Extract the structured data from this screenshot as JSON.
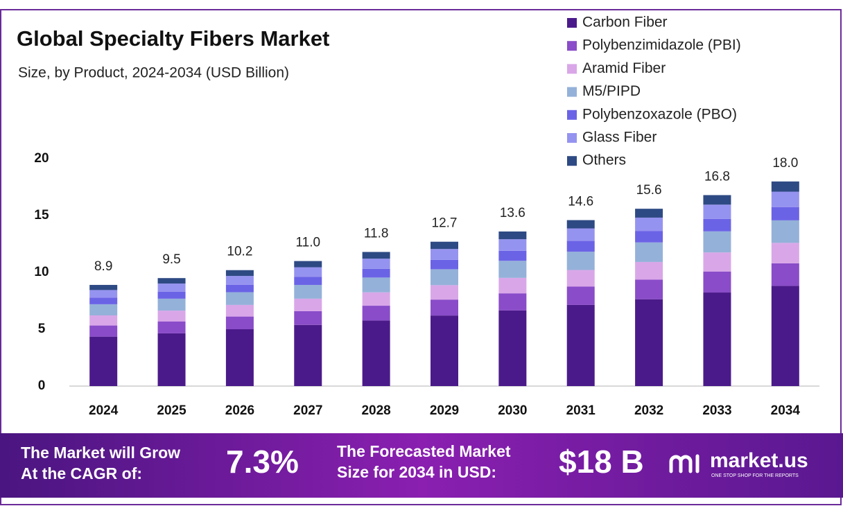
{
  "chart_data": {
    "type": "stacked-bar",
    "title": "Global Specialty Fibers Market",
    "subtitle": "Size, by Product, 2024-2034 (USD Billion)",
    "categories": [
      "2024",
      "2025",
      "2026",
      "2027",
      "2028",
      "2029",
      "2030",
      "2031",
      "2032",
      "2033",
      "2034"
    ],
    "series": [
      {
        "name": "Carbon Fiber",
        "color": "#4b1a8a",
        "values": [
          4.35,
          4.64,
          5.0,
          5.38,
          5.77,
          6.21,
          6.66,
          7.14,
          7.64,
          8.23,
          8.82
        ]
      },
      {
        "name": "Polybenzimidazole (PBI)",
        "color": "#8a4cc9",
        "values": [
          0.98,
          1.05,
          1.12,
          1.21,
          1.3,
          1.4,
          1.5,
          1.61,
          1.72,
          1.85,
          1.98
        ]
      },
      {
        "name": "Aramid Fiber",
        "color": "#d9a7e8",
        "values": [
          0.89,
          0.95,
          1.02,
          1.1,
          1.18,
          1.27,
          1.36,
          1.46,
          1.56,
          1.68,
          1.8
        ]
      },
      {
        "name": "M5/PIPD",
        "color": "#94b1d9",
        "values": [
          0.98,
          1.05,
          1.12,
          1.21,
          1.3,
          1.4,
          1.5,
          1.61,
          1.72,
          1.85,
          1.98
        ]
      },
      {
        "name": "Polybenzoxazole (PBO)",
        "color": "#6b63e6",
        "values": [
          0.58,
          0.62,
          0.66,
          0.72,
          0.77,
          0.83,
          0.88,
          0.95,
          1.01,
          1.09,
          1.17
        ]
      },
      {
        "name": "Glass Fiber",
        "color": "#9593f0",
        "values": [
          0.67,
          0.71,
          0.77,
          0.83,
          0.89,
          0.95,
          1.02,
          1.1,
          1.17,
          1.26,
          1.35
        ]
      },
      {
        "name": "Others",
        "color": "#2e4a84",
        "values": [
          0.45,
          0.48,
          0.51,
          0.55,
          0.59,
          0.64,
          0.68,
          0.73,
          0.78,
          0.84,
          0.9
        ]
      }
    ],
    "totals": [
      8.9,
      9.5,
      10.2,
      11.0,
      11.8,
      12.7,
      13.6,
      14.6,
      15.6,
      16.8,
      18.0
    ],
    "value_labels": [
      "8.9",
      "9.5",
      "10.2",
      "11.0",
      "11.8",
      "12.7",
      "13.6",
      "14.6",
      "15.6",
      "16.8",
      "18.0"
    ],
    "ylim": [
      0,
      20
    ],
    "yticks": [
      0,
      5,
      10,
      15,
      20
    ],
    "grid": false
  },
  "footer": {
    "cagr_text": [
      "The Market will Grow",
      "At the CAGR of:"
    ],
    "cagr": "7.3%",
    "forecast_text": [
      "The Forecasted Market",
      "Size for 2034 in USD:"
    ],
    "forecast": "$18 B",
    "brand": "market.us",
    "tagline": "ONE STOP SHOP FOR THE REPORTS"
  }
}
